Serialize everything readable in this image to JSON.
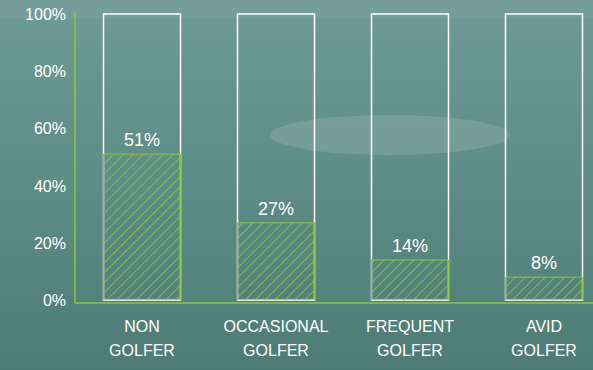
{
  "chart_data": {
    "type": "bar",
    "categories": [
      "NON GOLFER",
      "OCCASIONAL GOLFER",
      "FREQUENT GOLFER",
      "AVID GOLFER"
    ],
    "values": [
      51,
      27,
      14,
      8
    ],
    "value_labels": [
      "51%",
      "27%",
      "14%",
      "8%"
    ],
    "color": "#8dc63f",
    "ylim": [
      0,
      100
    ],
    "yticks": [
      {
        "value": 0,
        "label": "0%"
      },
      {
        "value": 20,
        "label": "20%"
      },
      {
        "value": 40,
        "label": "40%"
      },
      {
        "value": 60,
        "label": "60%"
      },
      {
        "value": 80,
        "label": "80%"
      },
      {
        "value": 100,
        "label": "100%"
      }
    ],
    "grid": false,
    "data_labels": true
  }
}
